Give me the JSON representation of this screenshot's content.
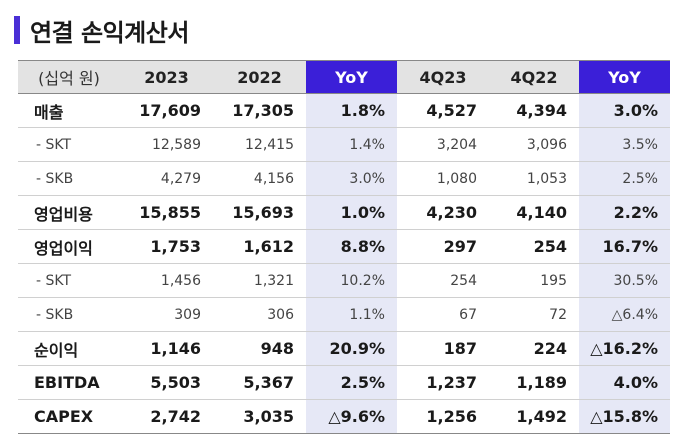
{
  "title": "연결 손익계산서",
  "colors": {
    "accent": "#3b1fd8",
    "yoy_bg": "#e6e8f6",
    "header_bg": "#e3e3e3"
  },
  "header": [
    "(십억 원)",
    "2023",
    "2022",
    "YoY",
    "4Q23",
    "4Q22",
    "YoY"
  ],
  "rows": [
    {
      "type": "main",
      "cells": [
        "매출",
        "17,609",
        "17,305",
        "1.8%",
        "4,527",
        "4,394",
        "3.0%"
      ]
    },
    {
      "type": "sub",
      "cells": [
        "- SKT",
        "12,589",
        "12,415",
        "1.4%",
        "3,204",
        "3,096",
        "3.5%"
      ]
    },
    {
      "type": "sub",
      "cells": [
        "- SKB",
        "4,279",
        "4,156",
        "3.0%",
        "1,080",
        "1,053",
        "2.5%"
      ]
    },
    {
      "type": "main",
      "cells": [
        "영업비용",
        "15,855",
        "15,693",
        "1.0%",
        "4,230",
        "4,140",
        "2.2%"
      ]
    },
    {
      "type": "main",
      "cells": [
        "영업이익",
        "1,753",
        "1,612",
        "8.8%",
        "297",
        "254",
        "16.7%"
      ]
    },
    {
      "type": "sub",
      "cells": [
        "- SKT",
        "1,456",
        "1,321",
        "10.2%",
        "254",
        "195",
        "30.5%"
      ]
    },
    {
      "type": "sub",
      "cells": [
        "- SKB",
        "309",
        "306",
        "1.1%",
        "67",
        "72",
        "△6.4%"
      ]
    },
    {
      "type": "main",
      "cells": [
        "순이익",
        "1,146",
        "948",
        "20.9%",
        "187",
        "224",
        "△16.2%"
      ]
    },
    {
      "type": "main",
      "cells": [
        "EBITDA",
        "5,503",
        "5,367",
        "2.5%",
        "1,237",
        "1,189",
        "4.0%"
      ]
    },
    {
      "type": "main",
      "cells": [
        "CAPEX",
        "2,742",
        "3,035",
        "△9.6%",
        "1,256",
        "1,492",
        "△15.8%"
      ]
    }
  ]
}
